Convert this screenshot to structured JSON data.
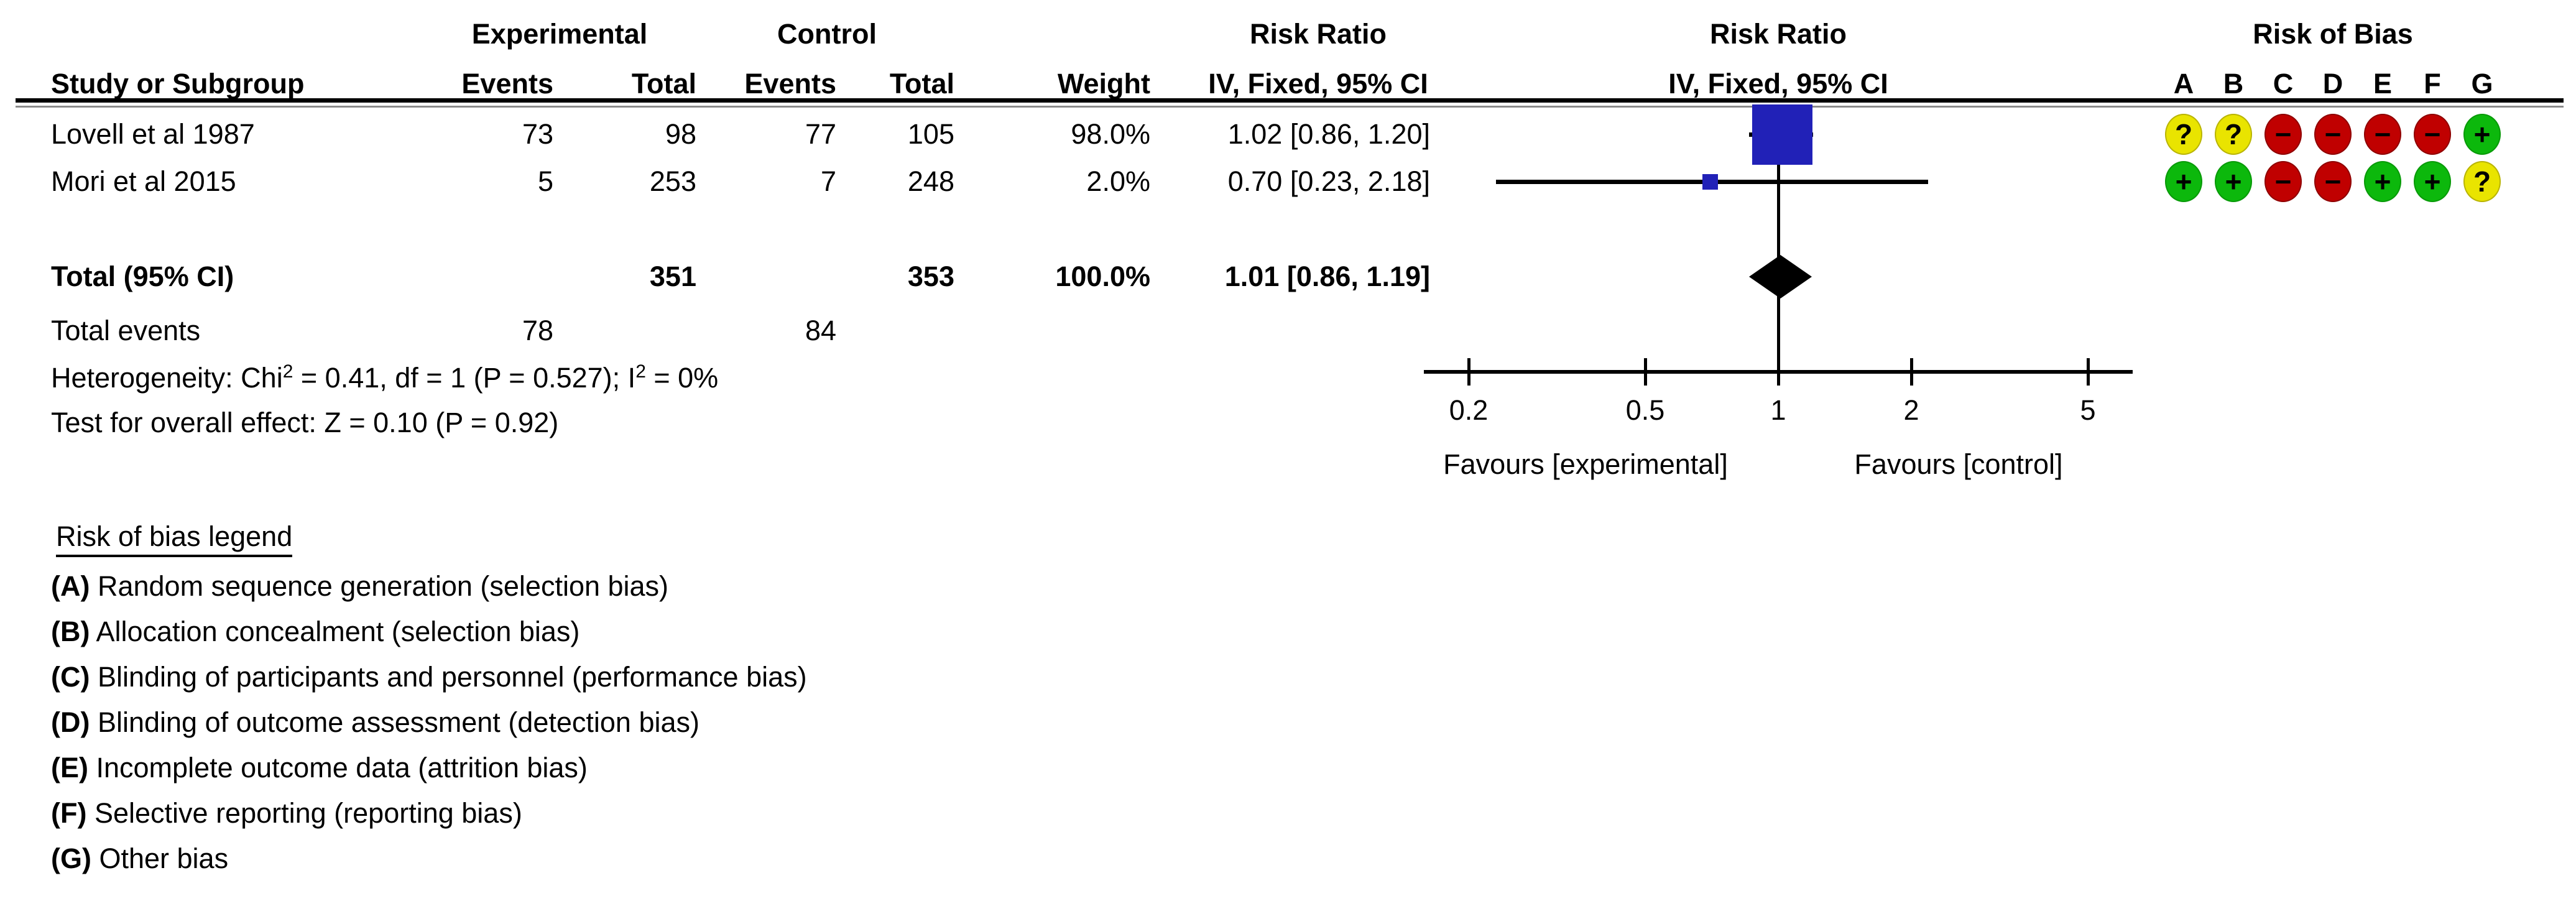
{
  "table": {
    "header": {
      "group_experimental": "Experimental",
      "group_control": "Control",
      "risk_ratio_text_title": "Risk Ratio",
      "risk_ratio_plot_title": "Risk Ratio",
      "risk_of_bias_title": "Risk of Bias",
      "study_col": "Study or Subgroup",
      "exp_events_col": "Events",
      "exp_total_col": "Total",
      "ctl_events_col": "Events",
      "ctl_total_col": "Total",
      "weight_col": "Weight",
      "method_text_col": "IV, Fixed, 95% CI",
      "method_plot_col": "IV, Fixed, 95% CI",
      "bias_letters": [
        "A",
        "B",
        "C",
        "D",
        "E",
        "F",
        "G"
      ]
    },
    "rows": [
      {
        "study": "Lovell et al 1987",
        "exp_events": "73",
        "exp_total": "98",
        "ctl_events": "77",
        "ctl_total": "105",
        "weight": "98.0%",
        "rr_ci": "1.02 [0.86, 1.20]",
        "bias": [
          "?",
          "?",
          "-",
          "-",
          "-",
          "-",
          "+"
        ]
      },
      {
        "study": "Mori et al 2015",
        "exp_events": "5",
        "exp_total": "253",
        "ctl_events": "7",
        "ctl_total": "248",
        "weight": "2.0%",
        "rr_ci": "0.70 [0.23, 2.18]",
        "bias": [
          "+",
          "+",
          "-",
          "-",
          "+",
          "+",
          "?"
        ]
      }
    ],
    "total_row": {
      "label": "Total (95% CI)",
      "exp_total": "351",
      "ctl_total": "353",
      "weight": "100.0%",
      "rr_ci": "1.01 [0.86, 1.19]"
    },
    "total_events": {
      "label": "Total events",
      "exp": "78",
      "ctl": "84"
    },
    "heterogeneity": {
      "p1": "Heterogeneity: Chi",
      "s1": "2",
      "p2": " = 0.41, df = 1 (P = 0.527); I",
      "s2": "2",
      "p3": " = 0%"
    },
    "overall_effect": "Test for overall effect: Z = 0.10 (P = 0.92)"
  },
  "chart_data": {
    "type": "forest",
    "scale": "log10",
    "x_ticks": [
      0.2,
      0.5,
      1,
      2,
      5
    ],
    "x_tick_labels": [
      "0.2",
      "0.5",
      "1",
      "2",
      "5"
    ],
    "axis_line_range": [
      0.158,
      6.3
    ],
    "null_line": 1,
    "favours_left": "Favours [experimental]",
    "favours_right": "Favours [control]",
    "studies": [
      {
        "name": "Lovell et al 1987",
        "rr": 1.02,
        "ci_low": 0.86,
        "ci_high": 1.2,
        "weight_pct": 98.0
      },
      {
        "name": "Mori et al 2015",
        "rr": 0.7,
        "ci_low": 0.23,
        "ci_high": 2.18,
        "weight_pct": 2.0
      }
    ],
    "total": {
      "rr": 1.01,
      "ci_low": 0.86,
      "ci_high": 1.19
    }
  },
  "legend": {
    "title": "Risk of bias legend",
    "items": [
      {
        "letter": "(A)",
        "text": "Random sequence generation (selection bias)"
      },
      {
        "letter": "(B)",
        "text": "Allocation concealment (selection bias)"
      },
      {
        "letter": "(C)",
        "text": "Blinding of participants and personnel (performance bias)"
      },
      {
        "letter": "(D)",
        "text": "Blinding of outcome assessment (detection bias)"
      },
      {
        "letter": "(E)",
        "text": "Incomplete outcome data (attrition bias)"
      },
      {
        "letter": "(F)",
        "text": "Selective reporting (reporting bias)"
      },
      {
        "letter": "(G)",
        "text": "Other bias"
      }
    ]
  },
  "colors": {
    "square_blue": "#2121b7",
    "diamond_black": "#000000",
    "bias_unclear_fill": "#e9e400",
    "bias_unclear_border": "#b9b400",
    "bias_low_fill": "#0cb80c",
    "bias_low_border": "#089a08",
    "bias_high_fill": "#c00000",
    "bias_high_border": "#8f0000"
  }
}
